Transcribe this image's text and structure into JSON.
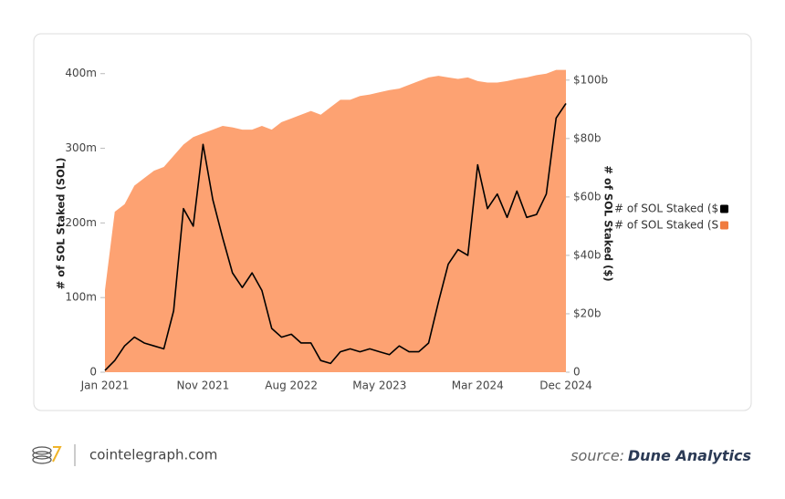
{
  "chart_data": {
    "type": "area_line",
    "categories": [
      "Jan 2021",
      null,
      null,
      null,
      null,
      null,
      null,
      null,
      null,
      null,
      "Nov 2021",
      null,
      null,
      null,
      null,
      null,
      null,
      null,
      null,
      "Aug 2022",
      null,
      null,
      null,
      null,
      null,
      null,
      null,
      null,
      "May 2023",
      null,
      null,
      null,
      null,
      null,
      null,
      null,
      null,
      null,
      "Mar 2024",
      null,
      null,
      null,
      null,
      null,
      null,
      null,
      null,
      "Dec 2024"
    ],
    "y_label": "# of SOL Staked (SOL)",
    "y2_label": "# of SOL Staked ($)",
    "series": [
      {
        "name": "# of SOL Staked (S",
        "color": "#fda272",
        "legend_color": "#f07b3f",
        "mark": "area",
        "values": [
          110000000,
          215000000,
          225000000,
          250000000,
          260000000,
          270000000,
          275000000,
          290000000,
          305000000,
          315000000,
          320000000,
          325000000,
          330000000,
          328000000,
          325000000,
          325000000,
          330000000,
          325000000,
          335000000,
          340000000,
          345000000,
          350000000,
          345000000,
          355000000,
          365000000,
          365000000,
          370000000,
          372000000,
          375000000,
          378000000,
          380000000,
          385000000,
          390000000,
          395000000,
          397000000,
          395000000,
          393000000,
          395000000,
          390000000,
          388000000,
          388000000,
          390000000,
          393000000,
          395000000,
          398000000,
          400000000,
          405000000,
          405000000
        ]
      },
      {
        "name": "# of SOL Staked ($",
        "color": "#000000",
        "legend_color": "#000000",
        "mark": "line",
        "axis": "y2",
        "values": [
          600000000,
          4000000000,
          9000000000,
          12000000000,
          10000000000,
          9000000000,
          8000000000,
          21000000000,
          56000000000,
          50000000000,
          78000000000,
          59000000000,
          46000000000,
          34000000000,
          29000000000,
          34000000000,
          28000000000,
          15000000000,
          12000000000,
          13000000000,
          10000000000,
          10000000000,
          4000000000,
          3000000000,
          7000000000,
          8000000000,
          7000000000,
          8000000000,
          7000000000,
          6000000000,
          9000000000,
          7000000000,
          7000000000,
          10000000000,
          24000000000,
          37000000000,
          42000000000,
          40000000000,
          71000000000,
          56000000000,
          61000000000,
          53000000000,
          62000000000,
          53000000000,
          54000000000,
          61000000000,
          87000000000,
          92000000000
        ]
      }
    ],
    "ylim": [
      0,
      407000000
    ],
    "yticks": [
      0,
      {
        "value": 100000000,
        "label": "100m"
      },
      {
        "value": 200000000,
        "label": "200m"
      },
      {
        "value": 300000000,
        "label": "300m"
      },
      {
        "value": 400000000,
        "label": "400m"
      }
    ],
    "y2lim": [
      0,
      104000000000
    ],
    "y2ticks": [
      0,
      {
        "value": 20000000000,
        "label": "$20b"
      },
      {
        "value": 40000000000,
        "label": "$40b"
      },
      {
        "value": 60000000000,
        "label": "$60b"
      },
      {
        "value": 80000000000,
        "label": "$80b"
      },
      {
        "value": 100000000000,
        "label": "$100b"
      }
    ],
    "grid": false,
    "legend": "right"
  },
  "footer": {
    "site": "cointelegraph.com",
    "source_label": "source:",
    "source_name": "Dune Analytics"
  }
}
